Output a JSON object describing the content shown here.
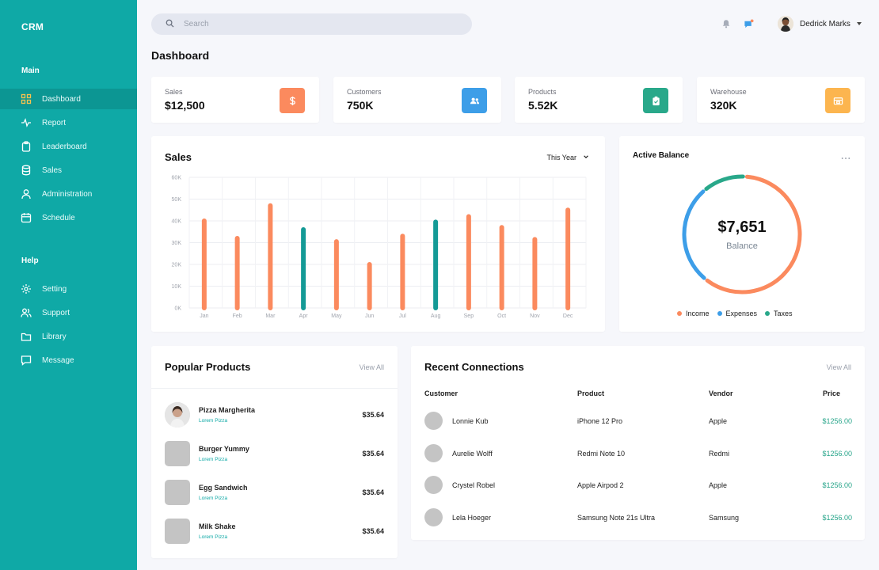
{
  "sidebar": {
    "brand": "CRM",
    "section_main": "Main",
    "section_help": "Help",
    "main_items": [
      {
        "label": "Dashboard",
        "icon": "grid-icon"
      },
      {
        "label": "Report",
        "icon": "pulse-icon"
      },
      {
        "label": "Leaderboard",
        "icon": "clipboard-icon"
      },
      {
        "label": "Sales",
        "icon": "database-icon"
      },
      {
        "label": "Administration",
        "icon": "user-icon"
      },
      {
        "label": "Schedule",
        "icon": "calendar-icon"
      }
    ],
    "help_items": [
      {
        "label": "Setting",
        "icon": "gear-icon"
      },
      {
        "label": "Support",
        "icon": "users-icon"
      },
      {
        "label": "Library",
        "icon": "folder-icon"
      },
      {
        "label": "Message",
        "icon": "message-icon"
      }
    ],
    "active_item": "Dashboard"
  },
  "header": {
    "search_placeholder": "Search",
    "user_name": "Dedrick Marks"
  },
  "page_title": "Dashboard",
  "stats": [
    {
      "label": "Sales",
      "value": "$12,500",
      "icon": "dollar-icon",
      "color": "#fb8a5e"
    },
    {
      "label": "Customers",
      "value": "750K",
      "icon": "users-icon",
      "color": "#3d9ee8"
    },
    {
      "label": "Products",
      "value": "5.52K",
      "icon": "clipboard-icon",
      "color": "#29a88a"
    },
    {
      "label": "Warehouse",
      "value": "320K",
      "icon": "warehouse-icon",
      "color": "#fcb54f"
    }
  ],
  "sales_card": {
    "title": "Sales",
    "period": "This Year"
  },
  "chart_data": {
    "type": "bar",
    "categories": [
      "Jan",
      "Feb",
      "Mar",
      "Apr",
      "May",
      "Jun",
      "Jul",
      "Aug",
      "Sep",
      "Oct",
      "Nov",
      "Dec"
    ],
    "values": [
      40000,
      32000,
      47000,
      36000,
      30500,
      20000,
      33000,
      39500,
      42000,
      37000,
      31500,
      45000
    ],
    "highlight": [
      "Apr",
      "Aug"
    ],
    "ylim": [
      0,
      60000
    ],
    "yticks": [
      "0K",
      "10K",
      "20K",
      "30K",
      "40K",
      "50K",
      "60K"
    ],
    "colors": {
      "default": "#fb8a5e",
      "highlight": "#149a96"
    },
    "grid": true,
    "xlabel": "",
    "ylabel": ""
  },
  "balance_card": {
    "title": "Active Balance",
    "amount": "$7,651",
    "label": "Balance",
    "menu_icon": "more-icon",
    "segments": [
      {
        "name": "Income",
        "value": 60,
        "color": "#fb8a5e"
      },
      {
        "name": "Expenses",
        "value": 28,
        "color": "#3d9ee8"
      },
      {
        "name": "Taxes",
        "value": 12,
        "color": "#29a88a"
      }
    ]
  },
  "products_card": {
    "title": "Popular Products",
    "view_all": "View All",
    "items": [
      {
        "name": "Pizza Margherita",
        "sub": "Lorem Pizza",
        "price": "$35.64"
      },
      {
        "name": "Burger Yummy",
        "sub": "Lorem Pizza",
        "price": "$35.64"
      },
      {
        "name": "Egg Sandwich",
        "sub": "Lorem Pizza",
        "price": "$35.64"
      },
      {
        "name": "Milk Shake",
        "sub": "Lorem Pizza",
        "price": "$35.64"
      }
    ]
  },
  "connections_card": {
    "title": "Recent Connections",
    "view_all": "View All",
    "columns": [
      "Customer",
      "Product",
      "Vendor",
      "Price"
    ],
    "rows": [
      {
        "customer": "Lonnie Kub",
        "product": "iPhone 12 Pro",
        "vendor": "Apple",
        "price": "$1256.00"
      },
      {
        "customer": "Aurelie Wolff",
        "product": "Redmi Note 10",
        "vendor": "Redmi",
        "price": "$1256.00"
      },
      {
        "customer": "Crystel Robel",
        "product": "Apple Airpod 2",
        "vendor": "Apple",
        "price": "$1256.00"
      },
      {
        "customer": "Lela Hoeger",
        "product": "Samsung Note 21s Ultra",
        "vendor": "Samsung",
        "price": "$1256.00"
      }
    ]
  }
}
